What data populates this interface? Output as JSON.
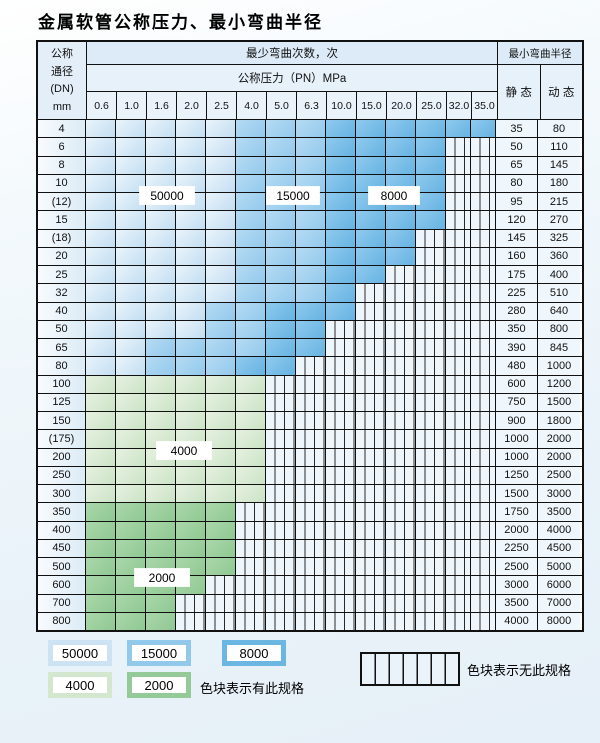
{
  "title": "金属软管公称压力、最小弯曲半径",
  "table": {
    "header": {
      "dn_lines": [
        "公称",
        "通径",
        "(DN)",
        "mm"
      ],
      "bend_cycles_label": "最少弯曲次数，次",
      "pressure_label": "公称压力（PN）MPa",
      "pressure_cols": [
        "0.6",
        "1.0",
        "1.6",
        "2.0",
        "2.5",
        "4.0",
        "5.0",
        "6.3",
        "10.0",
        "15.0",
        "20.0",
        "25.0",
        "32.0",
        "35.0"
      ],
      "radius_label": "最小弯曲半径",
      "static_label": "静 态",
      "dynamic_label": "动 态"
    },
    "cycle_zone_labels": [
      {
        "text": "50000"
      },
      {
        "text": "15000"
      },
      {
        "text": "8000"
      },
      {
        "text": "4000"
      },
      {
        "text": "2000"
      }
    ],
    "rows": [
      {
        "dn": "4",
        "cells": [
          "b1",
          "b1",
          "b1",
          "b1",
          "b1",
          "b2",
          "b2",
          "b2",
          "b3",
          "b3",
          "b3",
          "b3",
          "b3",
          "b3"
        ],
        "static": "35",
        "dynamic": "80"
      },
      {
        "dn": "6",
        "cells": [
          "b1",
          "b1",
          "b1",
          "b1",
          "b1",
          "b2",
          "b2",
          "b2",
          "b3",
          "b3",
          "b3",
          "b3",
          "x",
          "x"
        ],
        "static": "50",
        "dynamic": "110"
      },
      {
        "dn": "8",
        "cells": [
          "b1",
          "b1",
          "b1",
          "b1",
          "b1",
          "b2",
          "b2",
          "b2",
          "b3",
          "b3",
          "b3",
          "b3",
          "x",
          "x"
        ],
        "static": "65",
        "dynamic": "145"
      },
      {
        "dn": "10",
        "cells": [
          "b1",
          "b1",
          "b1",
          "b1",
          "b1",
          "b2",
          "b2",
          "b2",
          "b3",
          "b3",
          "b3",
          "b3",
          "x",
          "x"
        ],
        "static": "80",
        "dynamic": "180"
      },
      {
        "dn": "(12)",
        "cells": [
          "b1",
          "b1",
          "b1",
          "b1",
          "b1",
          "b2",
          "b2",
          "b2",
          "b3",
          "b3",
          "b3",
          "b3",
          "x",
          "x"
        ],
        "static": "95",
        "dynamic": "215"
      },
      {
        "dn": "15",
        "cells": [
          "b1",
          "b1",
          "b1",
          "b1",
          "b1",
          "b2",
          "b2",
          "b2",
          "b3",
          "b3",
          "b3",
          "b3",
          "x",
          "x"
        ],
        "static": "120",
        "dynamic": "270"
      },
      {
        "dn": "(18)",
        "cells": [
          "b1",
          "b1",
          "b1",
          "b1",
          "b1",
          "b2",
          "b2",
          "b2",
          "b3",
          "b3",
          "b3",
          "x",
          "x",
          "x"
        ],
        "static": "145",
        "dynamic": "325"
      },
      {
        "dn": "20",
        "cells": [
          "b1",
          "b1",
          "b1",
          "b1",
          "b1",
          "b2",
          "b2",
          "b2",
          "b3",
          "b3",
          "b3",
          "x",
          "x",
          "x"
        ],
        "static": "160",
        "dynamic": "360"
      },
      {
        "dn": "25",
        "cells": [
          "b1",
          "b1",
          "b1",
          "b1",
          "b1",
          "b2",
          "b2",
          "b2",
          "b3",
          "b3",
          "x",
          "x",
          "x",
          "x"
        ],
        "static": "175",
        "dynamic": "400"
      },
      {
        "dn": "32",
        "cells": [
          "b1",
          "b1",
          "b1",
          "b1",
          "b1",
          "b2",
          "b2",
          "b2",
          "b3",
          "x",
          "x",
          "x",
          "x",
          "x"
        ],
        "static": "225",
        "dynamic": "510"
      },
      {
        "dn": "40",
        "cells": [
          "b1",
          "b1",
          "b1",
          "b1",
          "b2",
          "b2",
          "b3",
          "b3",
          "b3",
          "x",
          "x",
          "x",
          "x",
          "x"
        ],
        "static": "280",
        "dynamic": "640"
      },
      {
        "dn": "50",
        "cells": [
          "b1",
          "b1",
          "b1",
          "b1",
          "b2",
          "b2",
          "b3",
          "b3",
          "x",
          "x",
          "x",
          "x",
          "x",
          "x"
        ],
        "static": "350",
        "dynamic": "800"
      },
      {
        "dn": "65",
        "cells": [
          "b1",
          "b1",
          "b2",
          "b2",
          "b2",
          "b2",
          "b3",
          "b3",
          "x",
          "x",
          "x",
          "x",
          "x",
          "x"
        ],
        "static": "390",
        "dynamic": "845"
      },
      {
        "dn": "80",
        "cells": [
          "b1",
          "b1",
          "b2",
          "b2",
          "b2",
          "b3",
          "b3",
          "x",
          "x",
          "x",
          "x",
          "x",
          "x",
          "x"
        ],
        "static": "480",
        "dynamic": "1000"
      },
      {
        "dn": "100",
        "cells": [
          "g1",
          "g1",
          "g1",
          "g1",
          "g1",
          "g1",
          "x",
          "x",
          "x",
          "x",
          "x",
          "x",
          "x",
          "x"
        ],
        "static": "600",
        "dynamic": "1200"
      },
      {
        "dn": "125",
        "cells": [
          "g1",
          "g1",
          "g1",
          "g1",
          "g1",
          "g1",
          "x",
          "x",
          "x",
          "x",
          "x",
          "x",
          "x",
          "x"
        ],
        "static": "750",
        "dynamic": "1500"
      },
      {
        "dn": "150",
        "cells": [
          "g1",
          "g1",
          "g1",
          "g1",
          "g1",
          "g1",
          "x",
          "x",
          "x",
          "x",
          "x",
          "x",
          "x",
          "x"
        ],
        "static": "900",
        "dynamic": "1800"
      },
      {
        "dn": "(175)",
        "cells": [
          "g1",
          "g1",
          "g1",
          "g1",
          "g1",
          "g1",
          "x",
          "x",
          "x",
          "x",
          "x",
          "x",
          "x",
          "x"
        ],
        "static": "1000",
        "dynamic": "2000"
      },
      {
        "dn": "200",
        "cells": [
          "g1",
          "g1",
          "g1",
          "g1",
          "g1",
          "g1",
          "x",
          "x",
          "x",
          "x",
          "x",
          "x",
          "x",
          "x"
        ],
        "static": "1000",
        "dynamic": "2000"
      },
      {
        "dn": "250",
        "cells": [
          "g1",
          "g1",
          "g1",
          "g1",
          "g1",
          "g1",
          "x",
          "x",
          "x",
          "x",
          "x",
          "x",
          "x",
          "x"
        ],
        "static": "1250",
        "dynamic": "2500"
      },
      {
        "dn": "300",
        "cells": [
          "g1",
          "g1",
          "g1",
          "g1",
          "g1",
          "g1",
          "x",
          "x",
          "x",
          "x",
          "x",
          "x",
          "x",
          "x"
        ],
        "static": "1500",
        "dynamic": "3000"
      },
      {
        "dn": "350",
        "cells": [
          "g2",
          "g2",
          "g2",
          "g2",
          "g2",
          "x",
          "x",
          "x",
          "x",
          "x",
          "x",
          "x",
          "x",
          "x"
        ],
        "static": "1750",
        "dynamic": "3500"
      },
      {
        "dn": "400",
        "cells": [
          "g2",
          "g2",
          "g2",
          "g2",
          "g2",
          "x",
          "x",
          "x",
          "x",
          "x",
          "x",
          "x",
          "x",
          "x"
        ],
        "static": "2000",
        "dynamic": "4000"
      },
      {
        "dn": "450",
        "cells": [
          "g2",
          "g2",
          "g2",
          "g2",
          "g2",
          "x",
          "x",
          "x",
          "x",
          "x",
          "x",
          "x",
          "x",
          "x"
        ],
        "static": "2250",
        "dynamic": "4500"
      },
      {
        "dn": "500",
        "cells": [
          "g2",
          "g2",
          "g2",
          "g2",
          "g2",
          "x",
          "x",
          "x",
          "x",
          "x",
          "x",
          "x",
          "x",
          "x"
        ],
        "static": "2500",
        "dynamic": "5000"
      },
      {
        "dn": "600",
        "cells": [
          "g2",
          "g2",
          "g2",
          "g2",
          "x",
          "x",
          "x",
          "x",
          "x",
          "x",
          "x",
          "x",
          "x",
          "x"
        ],
        "static": "3000",
        "dynamic": "6000"
      },
      {
        "dn": "700",
        "cells": [
          "g2",
          "g2",
          "g2",
          "x",
          "x",
          "x",
          "x",
          "x",
          "x",
          "x",
          "x",
          "x",
          "x",
          "x"
        ],
        "static": "3500",
        "dynamic": "7000"
      },
      {
        "dn": "800",
        "cells": [
          "g2",
          "g2",
          "g2",
          "x",
          "x",
          "x",
          "x",
          "x",
          "x",
          "x",
          "x",
          "x",
          "x",
          "x"
        ],
        "static": "4000",
        "dynamic": "8000"
      }
    ]
  },
  "legend": {
    "items": [
      {
        "value": "50000",
        "color_key": "b1"
      },
      {
        "value": "15000",
        "color_key": "b2"
      },
      {
        "value": "8000",
        "color_key": "b3"
      },
      {
        "value": "4000",
        "color_key": "g1"
      },
      {
        "value": "2000",
        "color_key": "g2"
      }
    ],
    "available_label": "色块表示有此规格",
    "unavailable_label": "色块表示无此规格"
  },
  "colors": {
    "b1": "#cde3f4",
    "b2": "#92c8ea",
    "b3": "#6cb6e2",
    "g1": "#d3e7cf",
    "g2": "#94ca97",
    "hatch_bg": "#eef5fb",
    "grid_line": "#111111"
  }
}
